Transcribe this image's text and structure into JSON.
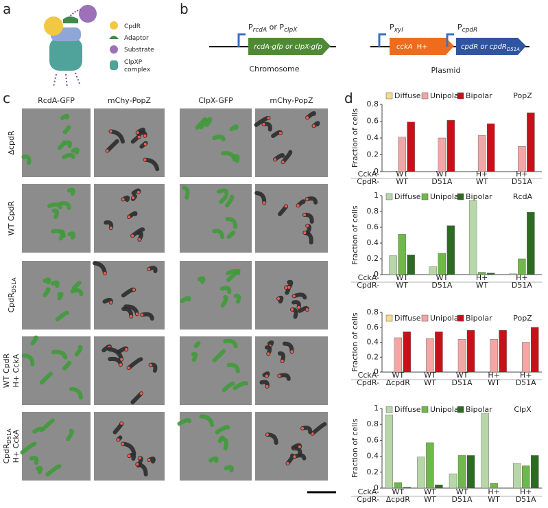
{
  "panel_letters": [
    "a",
    "b",
    "c",
    "d"
  ],
  "panel_a": {
    "legend": [
      "CpdR",
      "Adaptor",
      "Substrate",
      "ClpXP",
      "complex"
    ]
  },
  "panel_b": {
    "promoter_1": {
      "p": "P",
      "sub1": "rcdA",
      "or": " or P",
      "sub2": "clpX"
    },
    "gene_1": "rcdA-gfp or clpX-gfp",
    "label_1": "Chromosome",
    "promoter_2": {
      "p": "P",
      "sub": "xyl"
    },
    "promoter_3": {
      "p": "P",
      "sub": "cpdR"
    },
    "gene_2": "cckA",
    "gene_2_mut": "H+",
    "gene_3": "cpdR or cpdR",
    "gene_3_sub": "D51A",
    "label_2": "Plasmid"
  },
  "panel_c": {
    "columns": [
      "RcdA-GFP",
      "mChy-PopZ",
      "ClpX-GFP",
      "mChy-PopZ"
    ],
    "rows": [
      [
        {
          "text": "ΔcpdR"
        }
      ],
      [
        {
          "text": "WT CpdR"
        }
      ],
      [
        {
          "text": "CpdR",
          "sub": "D51A"
        }
      ],
      [
        {
          "text": "WT CpdR"
        },
        {
          "text": "H+ CckA"
        }
      ],
      [
        {
          "text": "CpdR",
          "sub": "D51A"
        },
        {
          "text": "H+ CckA"
        }
      ]
    ]
  },
  "chart_data": [
    {
      "type": "bar",
      "title": "PopZ",
      "y_label": "Fraction of cells",
      "ylim": [
        0,
        0.8
      ],
      "yticks": [
        0,
        0.2,
        0.4,
        0.6,
        0.8
      ],
      "category_rows": [
        {
          "label": "CckA-",
          "values": [
            "WT",
            "WT",
            "H+",
            "H+"
          ]
        },
        {
          "label": "CpdR-",
          "values": [
            "WT",
            "D51A",
            "WT",
            "D51A"
          ]
        }
      ],
      "series": [
        {
          "name": "Diffuse",
          "color": "#f7dd8a",
          "values": [
            0,
            0,
            0,
            0
          ]
        },
        {
          "name": "Unipolar",
          "color": "#f4a6a6",
          "values": [
            0.41,
            0.4,
            0.43,
            0.3
          ]
        },
        {
          "name": "Bipolar",
          "color": "#c8101a",
          "values": [
            0.59,
            0.61,
            0.57,
            0.7
          ]
        }
      ]
    },
    {
      "type": "bar",
      "title": "RcdA",
      "y_label": "Fraction of cells",
      "ylim": [
        0,
        1
      ],
      "yticks": [
        0,
        0.2,
        0.4,
        0.6,
        0.8,
        1
      ],
      "category_rows": [
        {
          "label": "CckA-",
          "values": [
            "WT",
            "WT",
            "H+",
            "H+"
          ]
        },
        {
          "label": "CpdR-",
          "values": [
            "WT",
            "D51A",
            "WT",
            "D51A"
          ]
        }
      ],
      "series": [
        {
          "name": "Diffuse",
          "color": "#b7d7a8",
          "values": [
            0.24,
            0.1,
            0.94,
            0.01
          ]
        },
        {
          "name": "Unipolar",
          "color": "#6fb84a",
          "values": [
            0.51,
            0.27,
            0.03,
            0.2
          ]
        },
        {
          "name": "Bipolar",
          "color": "#2d6a22",
          "values": [
            0.25,
            0.62,
            0.02,
            0.79
          ]
        }
      ]
    },
    {
      "type": "bar",
      "title": "PopZ",
      "y_label": "Fraction of cells",
      "ylim": [
        0,
        0.8
      ],
      "yticks": [
        0,
        0.2,
        0.4,
        0.6,
        0.8
      ],
      "category_rows": [
        {
          "label": "CckA-",
          "values": [
            "WT",
            "WT",
            "WT",
            "H+",
            "H+"
          ]
        },
        {
          "label": "CpdR-",
          "values": [
            "ΔcpdR",
            "WT",
            "D51A",
            "WT",
            "D51A"
          ]
        }
      ],
      "series": [
        {
          "name": "Diffuse",
          "color": "#f7dd8a",
          "values": [
            0,
            0,
            0,
            0,
            0
          ]
        },
        {
          "name": "Unipolar",
          "color": "#f4a6a6",
          "values": [
            0.46,
            0.45,
            0.44,
            0.44,
            0.4
          ]
        },
        {
          "name": "Bipolar",
          "color": "#c8101a",
          "values": [
            0.54,
            0.54,
            0.56,
            0.56,
            0.6
          ]
        }
      ]
    },
    {
      "type": "bar",
      "title": "ClpX",
      "y_label": "Fraction of cells",
      "ylim": [
        0,
        1
      ],
      "yticks": [
        0,
        0.2,
        0.4,
        0.6,
        0.8,
        1
      ],
      "category_rows": [
        {
          "label": "CckA-",
          "values": [
            "WT",
            "WT",
            "WT",
            "H+",
            "H+"
          ]
        },
        {
          "label": "CpdR-",
          "values": [
            "ΔcpdR",
            "WT",
            "D51A",
            "WT",
            "D51A"
          ]
        }
      ],
      "series": [
        {
          "name": "Diffuse",
          "color": "#b7d7a8",
          "values": [
            0.92,
            0.39,
            0.18,
            0.94,
            0.31
          ]
        },
        {
          "name": "Unipolar",
          "color": "#6fb84a",
          "values": [
            0.07,
            0.57,
            0.41,
            0.06,
            0.28
          ]
        },
        {
          "name": "Bipolar",
          "color": "#2d6a22",
          "values": [
            0.01,
            0.04,
            0.41,
            0,
            0.41
          ]
        }
      ]
    }
  ]
}
